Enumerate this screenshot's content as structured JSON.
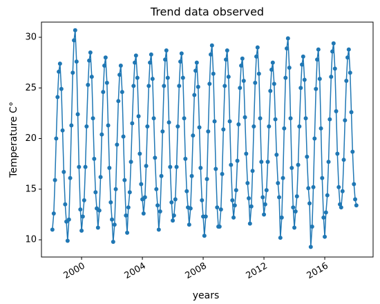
{
  "chart_data": {
    "type": "line",
    "title": "Trend data observed",
    "x_label": "years",
    "y_label": "Temperature C°",
    "x": [
      1998.08,
      1998.17,
      1998.25,
      1998.33,
      1998.42,
      1998.5,
      1998.58,
      1998.67,
      1998.75,
      1998.83,
      1998.92,
      1999,
      1999.08,
      1999.17,
      1999.25,
      1999.33,
      1999.42,
      1999.5,
      1999.58,
      1999.67,
      1999.75,
      1999.83,
      1999.92,
      2000,
      2000.08,
      2000.17,
      2000.25,
      2000.33,
      2000.42,
      2000.5,
      2000.58,
      2000.67,
      2000.75,
      2000.83,
      2000.92,
      2001,
      2001.08,
      2001.17,
      2001.25,
      2001.33,
      2001.42,
      2001.5,
      2001.58,
      2001.67,
      2001.75,
      2001.83,
      2001.92,
      2002,
      2002.08,
      2002.17,
      2002.25,
      2002.33,
      2002.42,
      2002.5,
      2002.58,
      2002.67,
      2002.75,
      2002.83,
      2002.92,
      2003,
      2003.08,
      2003.17,
      2003.25,
      2003.33,
      2003.42,
      2003.5,
      2003.58,
      2003.67,
      2003.75,
      2003.83,
      2003.92,
      2004,
      2004.08,
      2004.17,
      2004.25,
      2004.33,
      2004.42,
      2004.5,
      2004.58,
      2004.67,
      2004.75,
      2004.83,
      2004.92,
      2005,
      2005.08,
      2005.17,
      2005.25,
      2005.33,
      2005.42,
      2005.5,
      2005.58,
      2005.67,
      2005.75,
      2005.83,
      2005.92,
      2006,
      2006.08,
      2006.17,
      2006.25,
      2006.33,
      2006.42,
      2006.5,
      2006.58,
      2006.67,
      2006.75,
      2006.83,
      2006.92,
      2007,
      2007.08,
      2007.17,
      2007.25,
      2007.33,
      2007.42,
      2007.5,
      2007.58,
      2007.67,
      2007.75,
      2007.83,
      2007.92,
      2008,
      2008.08,
      2008.17,
      2008.25,
      2008.33,
      2008.42,
      2008.5,
      2008.58,
      2008.67,
      2008.75,
      2008.83,
      2008.92,
      2009,
      2009.08,
      2009.17,
      2009.25,
      2009.33,
      2009.42,
      2009.5,
      2009.58,
      2009.67,
      2009.75,
      2009.83,
      2009.92,
      2010,
      2010.08,
      2010.17,
      2010.25,
      2010.33,
      2010.42,
      2010.5,
      2010.58,
      2010.67,
      2010.75,
      2010.83,
      2010.92,
      2011,
      2011.08,
      2011.17,
      2011.25,
      2011.33,
      2011.42,
      2011.5,
      2011.58,
      2011.67,
      2011.75,
      2011.83,
      2011.92,
      2012,
      2012.08,
      2012.17,
      2012.25,
      2012.33,
      2012.42,
      2012.5,
      2012.58,
      2012.67,
      2012.75,
      2012.83,
      2012.92,
      2013,
      2013.08,
      2013.17,
      2013.25,
      2013.33,
      2013.42,
      2013.5,
      2013.58,
      2013.67,
      2013.75,
      2013.83,
      2013.92,
      2014,
      2014.08,
      2014.17,
      2014.25,
      2014.33,
      2014.42,
      2014.5,
      2014.58,
      2014.67,
      2014.75,
      2014.83,
      2014.92,
      2015,
      2015.08,
      2015.17,
      2015.25,
      2015.33,
      2015.42,
      2015.5,
      2015.58,
      2015.67,
      2015.75,
      2015.83,
      2015.92,
      2016,
      2016.08,
      2016.17,
      2016.25,
      2016.33,
      2016.42,
      2016.5,
      2016.58,
      2016.67,
      2016.75,
      2016.83,
      2016.92,
      2017,
      2017.08,
      2017.17,
      2017.25,
      2017.33,
      2017.42,
      2017.5,
      2017.58,
      2017.67,
      2017.75,
      2017.83,
      2017.92,
      2018,
      2018.08
    ],
    "series": [
      {
        "color": "#1f77b4",
        "values": [
          11,
          12.6,
          15.9,
          20.0,
          24.1,
          26.6,
          27.4,
          24.9,
          20.8,
          16.7,
          13.5,
          11.8,
          9.9,
          12.0,
          16.1,
          21.3,
          26.5,
          29.7,
          30.7,
          27.6,
          22.4,
          17.2,
          13.0,
          10.9,
          12.3,
          13.9,
          17.2,
          21.2,
          25.3,
          27.7,
          28.5,
          26.1,
          22.0,
          18.0,
          14.7,
          13.1,
          11.2,
          12.9,
          16.2,
          20.4,
          24.6,
          27.2,
          28.0,
          25.5,
          21.3,
          17.1,
          13.7,
          12.0,
          9.8,
          11.5,
          15.0,
          19.4,
          23.7,
          26.3,
          27.2,
          24.6,
          20.2,
          15.9,
          12.4,
          10.7,
          13.2,
          14.7,
          17.7,
          21.5,
          25.2,
          27.5,
          28.2,
          26.0,
          22.2,
          18.5,
          15.5,
          14.0,
          12.6,
          14.2,
          17.3,
          21.2,
          25.2,
          27.5,
          28.3,
          25.9,
          22.0,
          18.1,
          15.0,
          13.4,
          11.0,
          12.8,
          16.3,
          20.7,
          25.2,
          27.8,
          28.7,
          26.0,
          21.6,
          17.2,
          13.7,
          11.9,
          12.4,
          14.0,
          17.2,
          21.2,
          25.2,
          27.6,
          28.4,
          26.0,
          22.0,
          18.0,
          14.8,
          13.2,
          11.5,
          13.1,
          16.3,
          20.3,
          24.3,
          26.7,
          27.5,
          25.1,
          21.1,
          17.1,
          13.9,
          12.3,
          10.4,
          12.3,
          16.0,
          20.7,
          25.4,
          28.3,
          29.2,
          26.4,
          21.7,
          17.0,
          13.2,
          11.3,
          11.3,
          13.0,
          16.5,
          20.9,
          25.2,
          27.8,
          28.7,
          26.1,
          21.7,
          17.4,
          13.9,
          12.2,
          13.4,
          14.9,
          17.8,
          21.4,
          25.0,
          27.2,
          27.9,
          25.7,
          22.1,
          18.5,
          15.6,
          14.1,
          11.6,
          13.3,
          16.8,
          21.2,
          25.5,
          28.1,
          29.0,
          26.4,
          22.0,
          17.7,
          14.2,
          12.5,
          13.5,
          14.9,
          17.7,
          21.2,
          24.7,
          26.8,
          27.5,
          25.4,
          21.9,
          18.4,
          15.6,
          14.2,
          10.2,
          12.2,
          16.1,
          21.0,
          26.0,
          28.9,
          29.9,
          27.0,
          22.0,
          17.1,
          13.2,
          11.2,
          12.8,
          14.3,
          17.4,
          21.2,
          25.0,
          27.3,
          28.1,
          25.8,
          22.0,
          18.2,
          15.1,
          13.6,
          9.3,
          11.3,
          15.2,
          20.0,
          24.9,
          27.8,
          28.8,
          25.9,
          21.0,
          16.1,
          12.2,
          10.3,
          12.7,
          14.4,
          17.7,
          21.9,
          26.1,
          28.6,
          29.4,
          26.9,
          22.7,
          18.5,
          15.2,
          13.5,
          13.2,
          14.8,
          17.9,
          21.8,
          25.7,
          28.0,
          28.8,
          26.5,
          22.6,
          18.7,
          15.5,
          14.0,
          13.4
        ]
      }
    ],
    "xlim": [
      1997.36,
      2019.18
    ],
    "xticks": [
      2000,
      2004,
      2008,
      2012,
      2016
    ],
    "ylim": [
      8.3,
      31.5
    ],
    "yticks": [
      10,
      15,
      20,
      25,
      30
    ],
    "grid": false
  }
}
